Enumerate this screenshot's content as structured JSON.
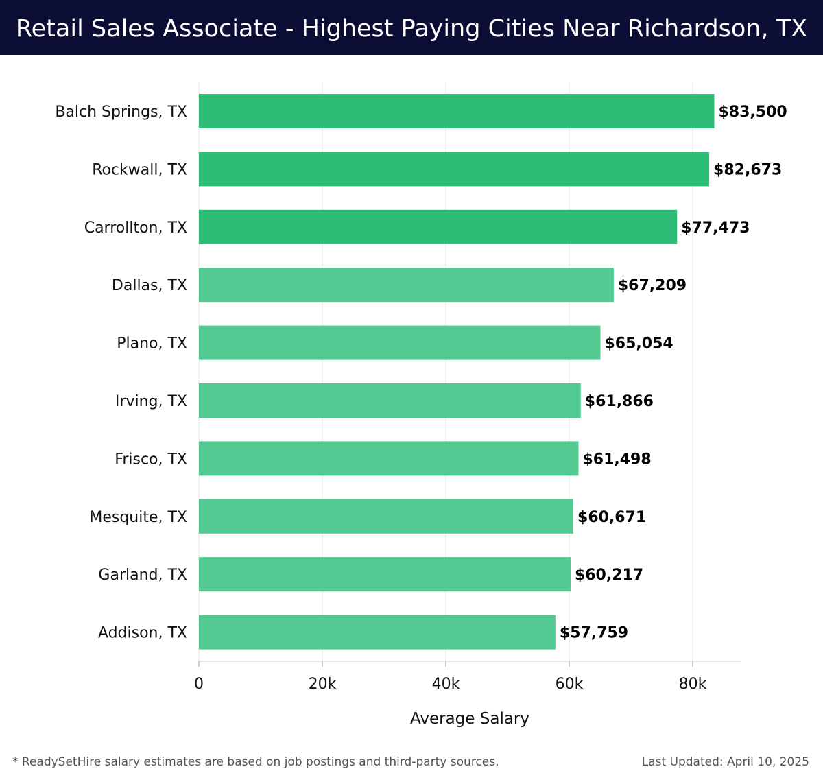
{
  "header": {
    "title": "Retail Sales Associate - Highest Paying Cities Near Richardson, TX"
  },
  "footer": {
    "note": "* ReadySetHire salary estimates are based on job postings and third-party sources.",
    "updated": "Last Updated: April 10, 2025"
  },
  "colors": {
    "header_bg": "#0b0d35",
    "bar_top": "#2ebd77",
    "bar_rest": "#52c991",
    "grid": "#e3e3e3"
  },
  "chart_data": {
    "type": "bar",
    "orientation": "horizontal",
    "categories": [
      "Balch Springs, TX",
      "Rockwall, TX",
      "Carrollton, TX",
      "Dallas, TX",
      "Plano, TX",
      "Irving, TX",
      "Frisco, TX",
      "Mesquite, TX",
      "Garland, TX",
      "Addison, TX"
    ],
    "values": [
      83500,
      82673,
      77473,
      67209,
      65054,
      61866,
      61498,
      60671,
      60217,
      57759
    ],
    "value_labels": [
      "$83,500",
      "$82,673",
      "$77,473",
      "$67,209",
      "$65,054",
      "$61,866",
      "$61,498",
      "$60,671",
      "$60,217",
      "$57,759"
    ],
    "xlabel": "Average Salary",
    "ylabel": "",
    "xlim": [
      0,
      88000
    ],
    "xticks": [
      0,
      20000,
      40000,
      60000,
      80000
    ],
    "xtick_labels": [
      "0",
      "20k",
      "40k",
      "60k",
      "80k"
    ],
    "grid": true,
    "highlighted_top": 3
  }
}
